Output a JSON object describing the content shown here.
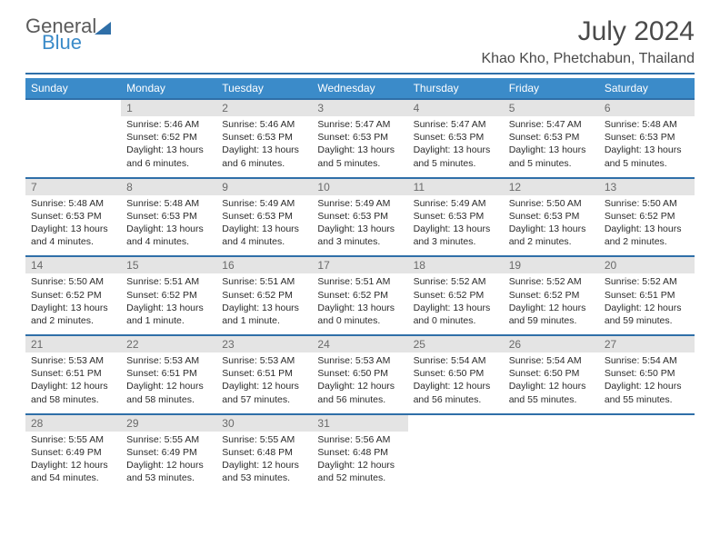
{
  "logo": {
    "line1": "General",
    "line2": "Blue"
  },
  "title": "July 2024",
  "location": "Khao Kho, Phetchabun, Thailand",
  "colors": {
    "header_bg": "#3b8bc9",
    "header_text": "#ffffff",
    "rule": "#2f6fa8",
    "daynum_bg": "#e4e4e4",
    "daynum_text": "#6a6a6a",
    "body_text": "#2b2b2b",
    "title_text": "#4a4a4a"
  },
  "dayHeaders": [
    "Sunday",
    "Monday",
    "Tuesday",
    "Wednesday",
    "Thursday",
    "Friday",
    "Saturday"
  ],
  "weeks": [
    [
      {
        "n": "",
        "lines": []
      },
      {
        "n": "1",
        "lines": [
          "Sunrise: 5:46 AM",
          "Sunset: 6:52 PM",
          "Daylight: 13 hours",
          "and 6 minutes."
        ]
      },
      {
        "n": "2",
        "lines": [
          "Sunrise: 5:46 AM",
          "Sunset: 6:53 PM",
          "Daylight: 13 hours",
          "and 6 minutes."
        ]
      },
      {
        "n": "3",
        "lines": [
          "Sunrise: 5:47 AM",
          "Sunset: 6:53 PM",
          "Daylight: 13 hours",
          "and 5 minutes."
        ]
      },
      {
        "n": "4",
        "lines": [
          "Sunrise: 5:47 AM",
          "Sunset: 6:53 PM",
          "Daylight: 13 hours",
          "and 5 minutes."
        ]
      },
      {
        "n": "5",
        "lines": [
          "Sunrise: 5:47 AM",
          "Sunset: 6:53 PM",
          "Daylight: 13 hours",
          "and 5 minutes."
        ]
      },
      {
        "n": "6",
        "lines": [
          "Sunrise: 5:48 AM",
          "Sunset: 6:53 PM",
          "Daylight: 13 hours",
          "and 5 minutes."
        ]
      }
    ],
    [
      {
        "n": "7",
        "lines": [
          "Sunrise: 5:48 AM",
          "Sunset: 6:53 PM",
          "Daylight: 13 hours",
          "and 4 minutes."
        ]
      },
      {
        "n": "8",
        "lines": [
          "Sunrise: 5:48 AM",
          "Sunset: 6:53 PM",
          "Daylight: 13 hours",
          "and 4 minutes."
        ]
      },
      {
        "n": "9",
        "lines": [
          "Sunrise: 5:49 AM",
          "Sunset: 6:53 PM",
          "Daylight: 13 hours",
          "and 4 minutes."
        ]
      },
      {
        "n": "10",
        "lines": [
          "Sunrise: 5:49 AM",
          "Sunset: 6:53 PM",
          "Daylight: 13 hours",
          "and 3 minutes."
        ]
      },
      {
        "n": "11",
        "lines": [
          "Sunrise: 5:49 AM",
          "Sunset: 6:53 PM",
          "Daylight: 13 hours",
          "and 3 minutes."
        ]
      },
      {
        "n": "12",
        "lines": [
          "Sunrise: 5:50 AM",
          "Sunset: 6:53 PM",
          "Daylight: 13 hours",
          "and 2 minutes."
        ]
      },
      {
        "n": "13",
        "lines": [
          "Sunrise: 5:50 AM",
          "Sunset: 6:52 PM",
          "Daylight: 13 hours",
          "and 2 minutes."
        ]
      }
    ],
    [
      {
        "n": "14",
        "lines": [
          "Sunrise: 5:50 AM",
          "Sunset: 6:52 PM",
          "Daylight: 13 hours",
          "and 2 minutes."
        ]
      },
      {
        "n": "15",
        "lines": [
          "Sunrise: 5:51 AM",
          "Sunset: 6:52 PM",
          "Daylight: 13 hours",
          "and 1 minute."
        ]
      },
      {
        "n": "16",
        "lines": [
          "Sunrise: 5:51 AM",
          "Sunset: 6:52 PM",
          "Daylight: 13 hours",
          "and 1 minute."
        ]
      },
      {
        "n": "17",
        "lines": [
          "Sunrise: 5:51 AM",
          "Sunset: 6:52 PM",
          "Daylight: 13 hours",
          "and 0 minutes."
        ]
      },
      {
        "n": "18",
        "lines": [
          "Sunrise: 5:52 AM",
          "Sunset: 6:52 PM",
          "Daylight: 13 hours",
          "and 0 minutes."
        ]
      },
      {
        "n": "19",
        "lines": [
          "Sunrise: 5:52 AM",
          "Sunset: 6:52 PM",
          "Daylight: 12 hours",
          "and 59 minutes."
        ]
      },
      {
        "n": "20",
        "lines": [
          "Sunrise: 5:52 AM",
          "Sunset: 6:51 PM",
          "Daylight: 12 hours",
          "and 59 minutes."
        ]
      }
    ],
    [
      {
        "n": "21",
        "lines": [
          "Sunrise: 5:53 AM",
          "Sunset: 6:51 PM",
          "Daylight: 12 hours",
          "and 58 minutes."
        ]
      },
      {
        "n": "22",
        "lines": [
          "Sunrise: 5:53 AM",
          "Sunset: 6:51 PM",
          "Daylight: 12 hours",
          "and 58 minutes."
        ]
      },
      {
        "n": "23",
        "lines": [
          "Sunrise: 5:53 AM",
          "Sunset: 6:51 PM",
          "Daylight: 12 hours",
          "and 57 minutes."
        ]
      },
      {
        "n": "24",
        "lines": [
          "Sunrise: 5:53 AM",
          "Sunset: 6:50 PM",
          "Daylight: 12 hours",
          "and 56 minutes."
        ]
      },
      {
        "n": "25",
        "lines": [
          "Sunrise: 5:54 AM",
          "Sunset: 6:50 PM",
          "Daylight: 12 hours",
          "and 56 minutes."
        ]
      },
      {
        "n": "26",
        "lines": [
          "Sunrise: 5:54 AM",
          "Sunset: 6:50 PM",
          "Daylight: 12 hours",
          "and 55 minutes."
        ]
      },
      {
        "n": "27",
        "lines": [
          "Sunrise: 5:54 AM",
          "Sunset: 6:50 PM",
          "Daylight: 12 hours",
          "and 55 minutes."
        ]
      }
    ],
    [
      {
        "n": "28",
        "lines": [
          "Sunrise: 5:55 AM",
          "Sunset: 6:49 PM",
          "Daylight: 12 hours",
          "and 54 minutes."
        ]
      },
      {
        "n": "29",
        "lines": [
          "Sunrise: 5:55 AM",
          "Sunset: 6:49 PM",
          "Daylight: 12 hours",
          "and 53 minutes."
        ]
      },
      {
        "n": "30",
        "lines": [
          "Sunrise: 5:55 AM",
          "Sunset: 6:48 PM",
          "Daylight: 12 hours",
          "and 53 minutes."
        ]
      },
      {
        "n": "31",
        "lines": [
          "Sunrise: 5:56 AM",
          "Sunset: 6:48 PM",
          "Daylight: 12 hours",
          "and 52 minutes."
        ]
      },
      {
        "n": "",
        "lines": []
      },
      {
        "n": "",
        "lines": []
      },
      {
        "n": "",
        "lines": []
      }
    ]
  ]
}
